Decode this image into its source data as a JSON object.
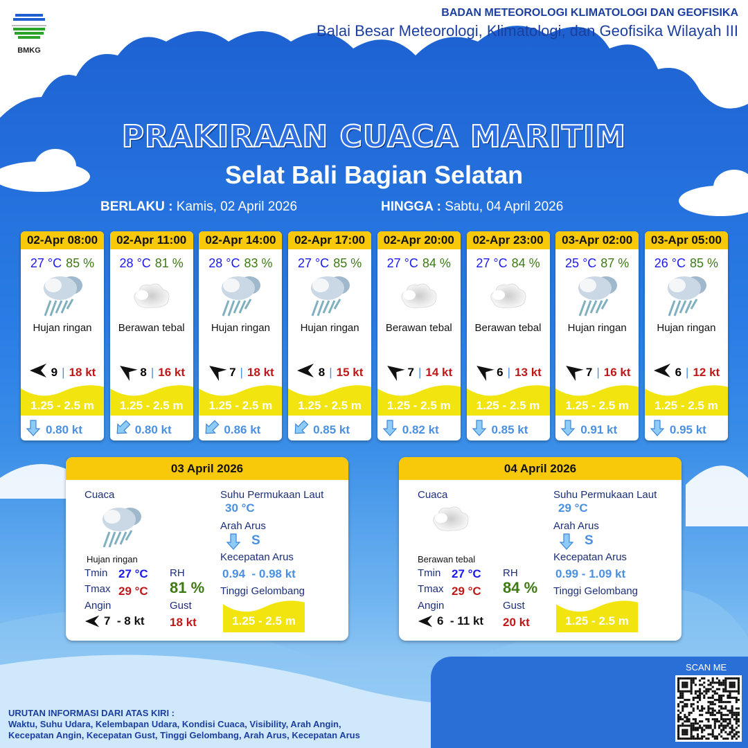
{
  "header": {
    "logo_text": "BMKG",
    "org_line1": "BADAN METEOROLOGI KLIMATOLOGI DAN GEOFISIKA",
    "org_line2": "Balai Besar Meteorologi, Klimatologi, dan Geofisika Wilayah III"
  },
  "title": "PRAKIRAAN CUACA MARITIM",
  "subtitle": "Selat Bali Bagian Selatan",
  "validity": {
    "from_label": "BERLAKU :",
    "from_value": "Kamis, 02 April 2026",
    "to_label": "HINGGA :",
    "to_value": "Sabtu, 04 April 2026"
  },
  "colors": {
    "accent_yellow": "#f7c90a",
    "temp_blue": "#1a1af0",
    "rh_green": "#3d7a14",
    "gust_red": "#c01818",
    "current_blue": "#4a90e2"
  },
  "forecasts": [
    {
      "time": "02-Apr 08:00",
      "temp": "27 °C",
      "rh": "85 %",
      "icon": "light-rain-icon",
      "weather": "Hujan ringan",
      "wind_dir": "left",
      "wind_speed": "9",
      "sep": "|",
      "gust": "18 kt",
      "wave": "1.25 - 2.5 m",
      "current_dir": "down",
      "current_speed": "0.80 kt"
    },
    {
      "time": "02-Apr 11:00",
      "temp": "28 °C",
      "rh": "81 %",
      "icon": "overcast-cloud-icon",
      "weather": "Berawan tebal",
      "wind_dir": "up-left",
      "wind_speed": "8",
      "sep": "|",
      "gust": "16 kt",
      "wave": "1.25 - 2.5 m",
      "current_dir": "down-left",
      "current_speed": "0.80 kt"
    },
    {
      "time": "02-Apr 14:00",
      "temp": "28 °C",
      "rh": "83 %",
      "icon": "light-rain-icon",
      "weather": "Hujan ringan",
      "wind_dir": "up-left",
      "wind_speed": "7",
      "sep": "|",
      "gust": "18 kt",
      "wave": "1.25 - 2.5 m",
      "current_dir": "down-left",
      "current_speed": "0.86 kt"
    },
    {
      "time": "02-Apr 17:00",
      "temp": "27 °C",
      "rh": "85 %",
      "icon": "light-rain-icon",
      "weather": "Hujan ringan",
      "wind_dir": "left",
      "wind_speed": "8",
      "sep": "|",
      "gust": "15 kt",
      "wave": "1.25 - 2.5 m",
      "current_dir": "down-left",
      "current_speed": "0.85 kt"
    },
    {
      "time": "02-Apr 20:00",
      "temp": "27 °C",
      "rh": "84 %",
      "icon": "overcast-cloud-icon",
      "weather": "Berawan tebal",
      "wind_dir": "up-left",
      "wind_speed": "7",
      "sep": "|",
      "gust": "14 kt",
      "wave": "1.25 - 2.5 m",
      "current_dir": "down",
      "current_speed": "0.82 kt"
    },
    {
      "time": "02-Apr 23:00",
      "temp": "27 °C",
      "rh": "84 %",
      "icon": "overcast-cloud-icon",
      "weather": "Berawan tebal",
      "wind_dir": "up-left",
      "wind_speed": "6",
      "sep": "|",
      "gust": "13 kt",
      "wave": "1.25 - 2.5 m",
      "current_dir": "down",
      "current_speed": "0.85 kt"
    },
    {
      "time": "03-Apr 02:00",
      "temp": "25 °C",
      "rh": "87 %",
      "icon": "light-rain-icon",
      "weather": "Hujan ringan",
      "wind_dir": "up-left",
      "wind_speed": "7",
      "sep": "|",
      "gust": "16 kt",
      "wave": "1.25 - 2.5 m",
      "current_dir": "down",
      "current_speed": "0.91 kt"
    },
    {
      "time": "03-Apr 05:00",
      "temp": "26 °C",
      "rh": "85 %",
      "icon": "light-rain-icon",
      "weather": "Hujan ringan",
      "wind_dir": "left",
      "wind_speed": "6",
      "sep": "|",
      "gust": "12 kt",
      "wave": "1.25 - 2.5 m",
      "current_dir": "down",
      "current_speed": "0.95 kt"
    }
  ],
  "daily": [
    {
      "date": "03 April 2026",
      "cuaca_label": "Cuaca",
      "icon": "light-rain-icon",
      "weather": "Hujan ringan",
      "tmin_label": "Tmin",
      "tmin": "27 °C",
      "tmax_label": "Tmax",
      "tmax": "29 °C",
      "rh_label": "RH",
      "rh": "81 %",
      "angin_label": "Angin",
      "wind_dir": "left",
      "wind": "7  - 8 kt",
      "gust_label": "Gust",
      "gust": "18 kt",
      "sst_label": "Suhu Permukaan Laut",
      "sst": "30 °C",
      "arah_label": "Arah Arus",
      "arah": "S",
      "kec_label": "Kecepatan Arus",
      "kec": "0.94  - 0.98 kt",
      "wave_label": "Tinggi Gelombang",
      "wave": "1.25 - 2.5 m"
    },
    {
      "date": "04 April 2026",
      "cuaca_label": "Cuaca",
      "icon": "overcast-cloud-icon",
      "weather": "Berawan tebal",
      "tmin_label": "Tmin",
      "tmin": "27 °C",
      "tmax_label": "Tmax",
      "tmax": "29 °C",
      "rh_label": "RH",
      "rh": "84 %",
      "angin_label": "Angin",
      "wind_dir": "left",
      "wind": "6  - 11 kt",
      "gust_label": "Gust",
      "gust": "20 kt",
      "sst_label": "Suhu Permukaan Laut",
      "sst": "29 °C",
      "arah_label": "Arah Arus",
      "arah": "S",
      "kec_label": "Kecepatan Arus",
      "kec": "0.99 - 1.09 kt",
      "wave_label": "Tinggi Gelombang",
      "wave": "1.25 - 2.5 m"
    }
  ],
  "footer": {
    "scan_label": "SCAN ME",
    "note_title": "URUTAN INFORMASI DARI ATAS KIRI :",
    "note_line1": "Waktu, Suhu Udara, Kelembapan Udara, Kondisi Cuaca, Visibility, Arah Angin,",
    "note_line2": "Kecepatan Angin, Kecepatan Gust, Tinggi Gelombang, Arah Arus, Kecepatan Arus"
  }
}
